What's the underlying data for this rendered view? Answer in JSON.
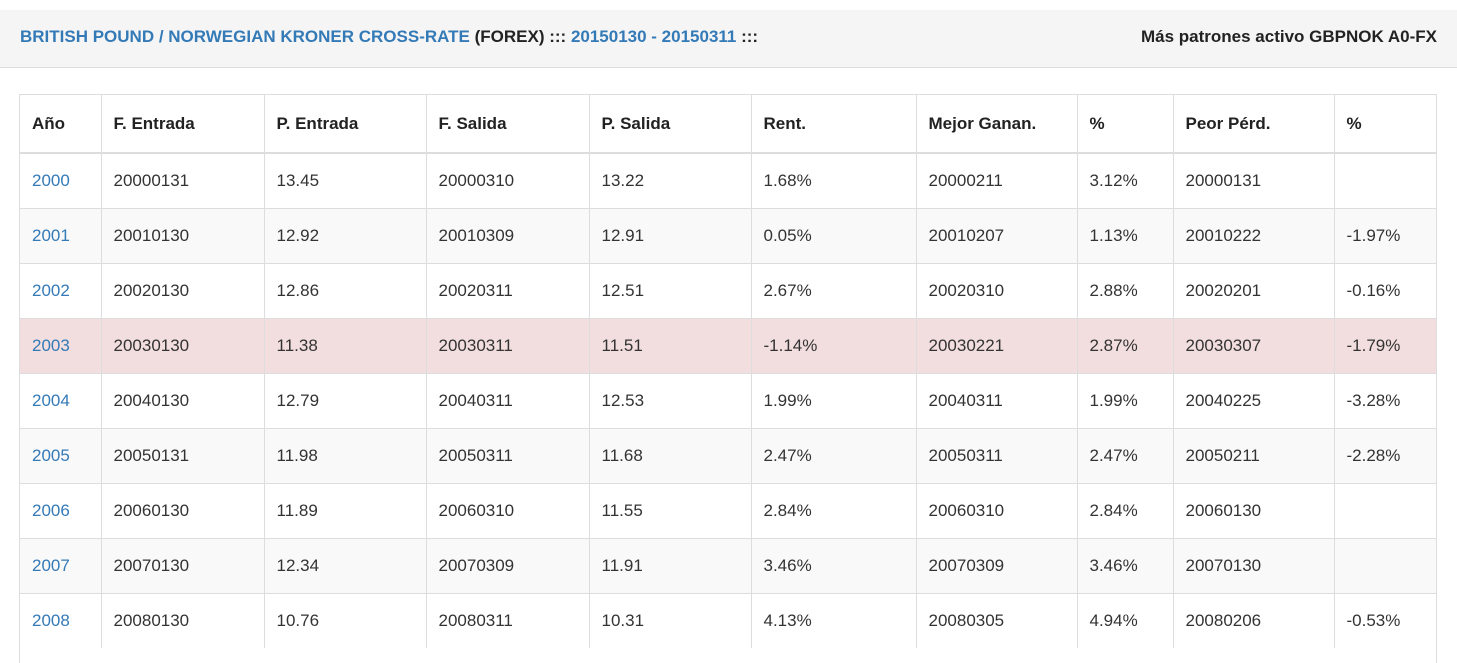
{
  "header": {
    "instrument_link": "BRITISH POUND / NORWEGIAN KRONER CROSS-RATE",
    "market_label": " (FOREX) ::: ",
    "period_link": "20150130 - 20150311",
    "period_suffix": " :::",
    "right_text": "Más patrones activo GBPNOK A0-FX"
  },
  "table": {
    "columns": [
      "Año",
      "F. Entrada",
      "P. Entrada",
      "F. Salida",
      "P. Salida",
      "Rent.",
      "Mejor Ganan.",
      "%",
      "Peor Pérd.",
      "%"
    ],
    "rows": [
      {
        "year": "2000",
        "f_entrada": "20000131",
        "p_entrada": "13.45",
        "f_salida": "20000310",
        "p_salida": "13.22",
        "rent": "1.68%",
        "mejor": "20000211",
        "mejor_pct": "3.12%",
        "peor": "20000131",
        "peor_pct": "",
        "style": "odd"
      },
      {
        "year": "2001",
        "f_entrada": "20010130",
        "p_entrada": "12.92",
        "f_salida": "20010309",
        "p_salida": "12.91",
        "rent": "0.05%",
        "mejor": "20010207",
        "mejor_pct": "1.13%",
        "peor": "20010222",
        "peor_pct": "-1.97%",
        "style": "even"
      },
      {
        "year": "2002",
        "f_entrada": "20020130",
        "p_entrada": "12.86",
        "f_salida": "20020311",
        "p_salida": "12.51",
        "rent": "2.67%",
        "mejor": "20020310",
        "mejor_pct": "2.88%",
        "peor": "20020201",
        "peor_pct": "-0.16%",
        "style": "odd"
      },
      {
        "year": "2003",
        "f_entrada": "20030130",
        "p_entrada": "11.38",
        "f_salida": "20030311",
        "p_salida": "11.51",
        "rent": "-1.14%",
        "mejor": "20030221",
        "mejor_pct": "2.87%",
        "peor": "20030307",
        "peor_pct": "-1.79%",
        "style": "loss"
      },
      {
        "year": "2004",
        "f_entrada": "20040130",
        "p_entrada": "12.79",
        "f_salida": "20040311",
        "p_salida": "12.53",
        "rent": "1.99%",
        "mejor": "20040311",
        "mejor_pct": "1.99%",
        "peor": "20040225",
        "peor_pct": "-3.28%",
        "style": "odd"
      },
      {
        "year": "2005",
        "f_entrada": "20050131",
        "p_entrada": "11.98",
        "f_salida": "20050311",
        "p_salida": "11.68",
        "rent": "2.47%",
        "mejor": "20050311",
        "mejor_pct": "2.47%",
        "peor": "20050211",
        "peor_pct": "-2.28%",
        "style": "even"
      },
      {
        "year": "2006",
        "f_entrada": "20060130",
        "p_entrada": "11.89",
        "f_salida": "20060310",
        "p_salida": "11.55",
        "rent": "2.84%",
        "mejor": "20060310",
        "mejor_pct": "2.84%",
        "peor": "20060130",
        "peor_pct": "",
        "style": "odd"
      },
      {
        "year": "2007",
        "f_entrada": "20070130",
        "p_entrada": "12.34",
        "f_salida": "20070309",
        "p_salida": "11.91",
        "rent": "3.46%",
        "mejor": "20070309",
        "mejor_pct": "3.46%",
        "peor": "20070130",
        "peor_pct": "",
        "style": "even"
      },
      {
        "year": "2008",
        "f_entrada": "20080130",
        "p_entrada": "10.76",
        "f_salida": "20080311",
        "p_salida": "10.31",
        "rent": "4.13%",
        "mejor": "20080305",
        "mejor_pct": "4.94%",
        "peor": "20080206",
        "peor_pct": "-0.53%",
        "style": "odd"
      }
    ]
  },
  "colors": {
    "link": "#337ab7",
    "loss_row": "#f2dede",
    "stripe": "#f9f9f9",
    "header_bg": "#f5f5f5"
  }
}
